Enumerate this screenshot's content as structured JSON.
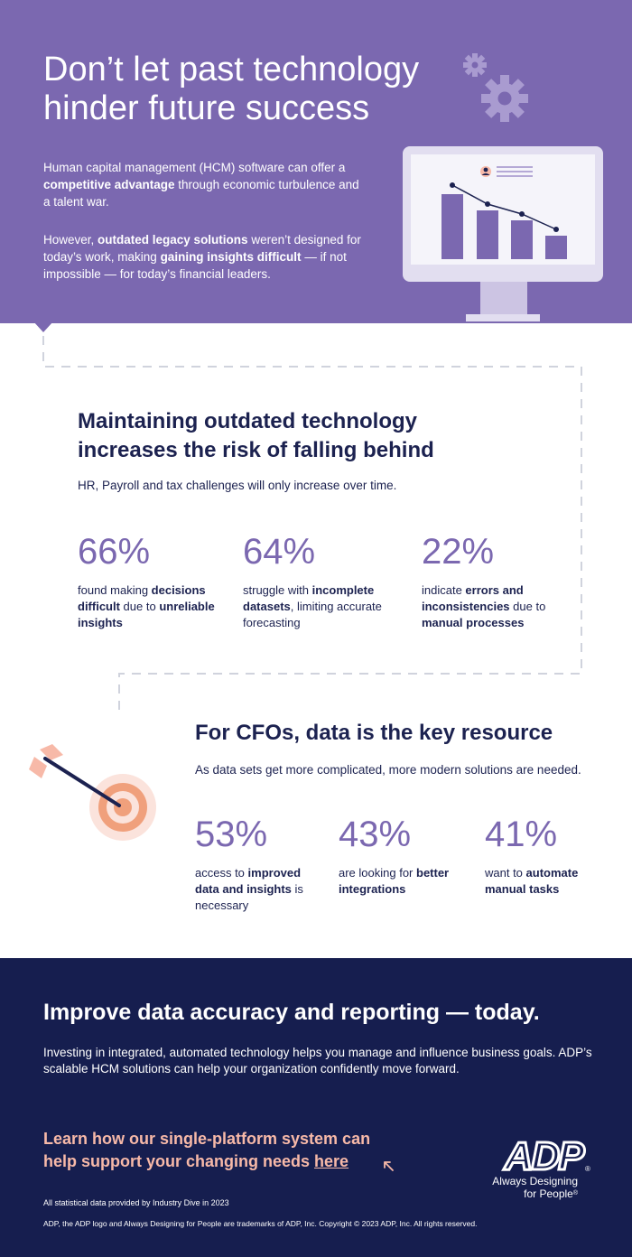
{
  "hero": {
    "title": "Don’t let past technology hinder future success",
    "p1_a": "Human capital management (HCM) software can offer a ",
    "p1_b": "competitive advantage",
    "p1_c": " through economic turbulence and a talent war.",
    "p2_a": "However, ",
    "p2_b": "outdated legacy solutions",
    "p2_c": " weren’t designed for today’s work, making ",
    "p2_d": "gaining insights difficult",
    "p2_e": " — if not impossible — for today’s financial leaders."
  },
  "section2": {
    "title": "Maintaining outdated technology increases the risk of falling behind",
    "subtitle": "HR, Payroll and tax challenges will only increase over time.",
    "stats": [
      {
        "value": "66%",
        "t1": "found making ",
        "b1": "decisions difficult",
        "t2": " due to ",
        "b2": "unreliable insights",
        "t3": ""
      },
      {
        "value": "64%",
        "t1": "struggle with ",
        "b1": "incomplete datasets",
        "t2": ", limiting accurate forecasting",
        "b2": "",
        "t3": ""
      },
      {
        "value": "22%",
        "t1": "indicate ",
        "b1": "errors and inconsistencies",
        "t2": " due to ",
        "b2": "manual processes",
        "t3": ""
      }
    ]
  },
  "section3": {
    "title": "For CFOs, data is the key resource",
    "subtitle": "As data sets get more complicated, more modern solutions are needed.",
    "stats": [
      {
        "value": "53%",
        "t1": "access to ",
        "b1": "improved data and insights",
        "t2": " is necessary",
        "b2": "",
        "t3": ""
      },
      {
        "value": "43%",
        "t1": "are looking for ",
        "b1": "better integrations",
        "t2": "",
        "b2": "",
        "t3": ""
      },
      {
        "value": "41%",
        "t1": "want to ",
        "b1": "automate manual tasks",
        "t2": "",
        "b2": "",
        "t3": ""
      }
    ]
  },
  "footer": {
    "title": "Improve data accuracy and reporting — today.",
    "paragraph": "Investing in integrated, automated technology helps you manage and influence business goals. ADP’s scalable HCM solutions can help your organization confidently move forward.",
    "cta_text": "Learn how our single-platform system can help support your changing needs ",
    "cta_link": "here",
    "note": "All statistical data provided by Industry Dive in 2023",
    "legal": "ADP, the ADP logo and Always Designing for People are trademarks of ADP, Inc. Copyright © 2023 ADP, Inc. All rights reserved.",
    "logo_text": "ADP",
    "registered_mark": "®",
    "tagline_1": "Always Designing",
    "tagline_2": "for People"
  },
  "colors": {
    "purple": "#7b68b0",
    "navy": "#161e4f",
    "text": "#1c2250",
    "peach": "#f7b9a8",
    "orange": "#f0a07c"
  },
  "icons": [
    "gear-icon",
    "monitor-chart-icon",
    "target-arrow-icon",
    "pointer-arrow-icon"
  ]
}
